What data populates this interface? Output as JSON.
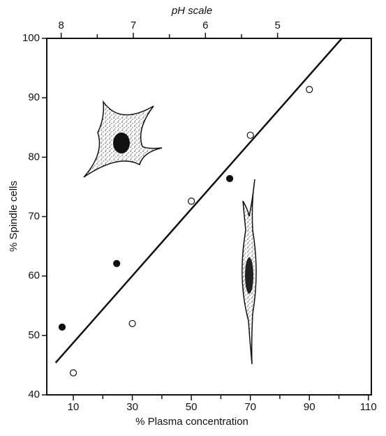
{
  "chart_data": {
    "type": "scatter",
    "x_label": "% Plasma concentration",
    "y_label": "% Spindle cells",
    "x2_label": "pH scale",
    "xlim": [
      1,
      111
    ],
    "xticks": [
      10,
      30,
      50,
      70,
      90,
      110
    ],
    "xminor": [
      20,
      40,
      60,
      80,
      100
    ],
    "ylim": [
      40,
      100
    ],
    "yticks": [
      40,
      50,
      60,
      70,
      80,
      90,
      100
    ],
    "x2lim": [
      8.2,
      3.7
    ],
    "x2ticks": [
      8,
      7,
      6,
      5
    ],
    "x2minor": [
      7.5,
      6.5,
      5.5
    ],
    "series": [
      {
        "marker": "open",
        "color": "#111111",
        "x": [
          10,
          30,
          50,
          70,
          90
        ],
        "values": [
          43.7,
          52,
          72.6,
          83.7,
          91.4
        ]
      },
      {
        "marker": "filled",
        "color": "#111111",
        "x": [
          6.2,
          24.7,
          63
        ],
        "values": [
          51.4,
          62.1,
          76.4
        ]
      }
    ],
    "fit": {
      "color": "#111111",
      "x": [
        4,
        101
      ],
      "values": [
        45.4,
        100
      ]
    }
  }
}
